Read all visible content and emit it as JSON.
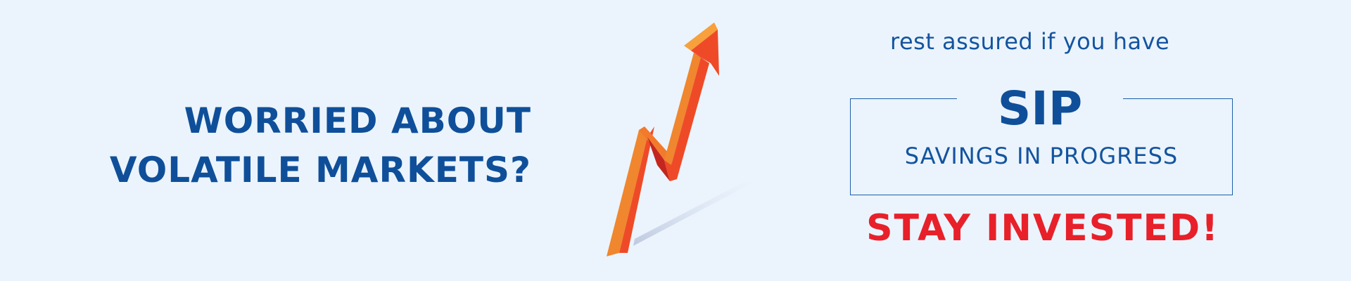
{
  "headline": {
    "line1": "WORRIED ABOUT",
    "line2": "VOLATILE MARKETS?"
  },
  "graphic": {
    "icon": "rising-trend-arrow-icon"
  },
  "tagline": "rest assured if you have",
  "sip": {
    "title": "SIP",
    "subtitle": "SAVINGS IN PROGRESS"
  },
  "cta": "STAY INVESTED!",
  "colors": {
    "background": "#ebf4fc",
    "primary_blue": "#0f4f9a",
    "accent_red": "#e8202a",
    "arrow_orange": "#f26b2a"
  }
}
